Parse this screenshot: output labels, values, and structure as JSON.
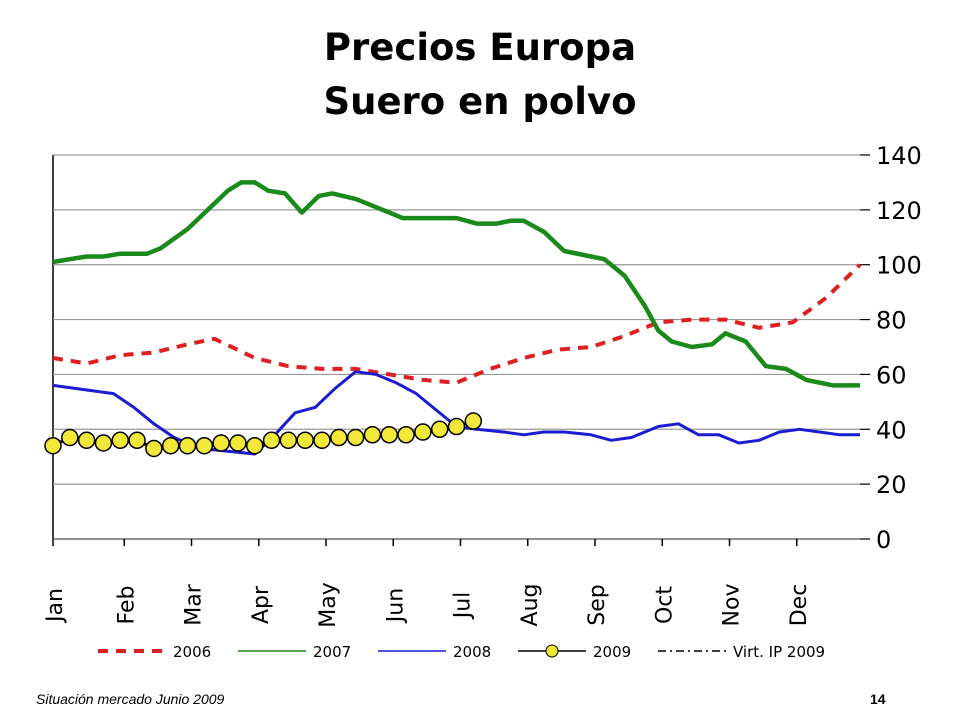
{
  "slide": {
    "title_line1": "Precios Europa",
    "title_line2": "Suero en polvo",
    "footer_text": "Situación mercado Junio 2009",
    "page_number": "14"
  },
  "chart_data": {
    "type": "line",
    "title": "",
    "xlabel": "",
    "ylabel": "",
    "ylim": [
      0,
      140
    ],
    "yticks": [
      0,
      20,
      40,
      60,
      80,
      100,
      120,
      140
    ],
    "x_range": [
      0,
      12
    ],
    "categories": [
      "Jan",
      "Feb",
      "Mar",
      "Apr",
      "May",
      "Jun",
      "Jul",
      "Aug",
      "Sep",
      "Oct",
      "Nov",
      "Dec"
    ],
    "grid": true,
    "legend_position": "bottom",
    "colors": {
      "2006": "#e02020",
      "2007": "#1a8a1a",
      "2008": "#1c1cd0",
      "2009": "#f2e83a",
      "Virt. IP 2009": "#000000"
    },
    "series": [
      {
        "name": "2006",
        "style": "dashed-red",
        "x": [
          0,
          0.5,
          1,
          1.5,
          2,
          2.4,
          3,
          3.5,
          4,
          4.5,
          5,
          5.5,
          6,
          6.5,
          7,
          7.5,
          8,
          8.5,
          9,
          9.5,
          10,
          10.5,
          11,
          11.5,
          12
        ],
        "y": [
          66,
          64,
          67,
          68,
          71,
          73,
          66,
          63,
          62,
          62,
          60,
          58,
          57,
          62,
          66,
          69,
          70,
          74,
          79,
          80,
          80,
          77,
          79,
          88,
          100
        ]
      },
      {
        "name": "2007",
        "style": "solid-green",
        "x": [
          0,
          0.25,
          0.5,
          0.75,
          1,
          1.4,
          1.6,
          2,
          2.3,
          2.6,
          2.8,
          3,
          3.2,
          3.45,
          3.7,
          3.95,
          4.15,
          4.5,
          4.8,
          5,
          5.2,
          5.5,
          6,
          6.3,
          6.6,
          6.8,
          7,
          7.3,
          7.6,
          8,
          8.2,
          8.5,
          8.8,
          9,
          9.2,
          9.5,
          9.8,
          10,
          10.3,
          10.6,
          10.9,
          11.2,
          11.6,
          12
        ],
        "y": [
          101,
          102,
          103,
          103,
          104,
          104,
          106,
          113,
          120,
          127,
          130,
          130,
          127,
          126,
          119,
          125,
          126,
          124,
          121,
          119,
          117,
          117,
          117,
          115,
          115,
          116,
          116,
          112,
          105,
          103,
          102,
          96,
          85,
          76,
          72,
          70,
          71,
          75,
          72,
          63,
          62,
          58,
          56,
          56
        ]
      },
      {
        "name": "2008",
        "style": "solid-blue",
        "x": [
          0,
          0.3,
          0.6,
          0.9,
          1.2,
          1.5,
          1.8,
          2.2,
          2.6,
          3,
          3.3,
          3.6,
          3.9,
          4.2,
          4.5,
          4.8,
          5.1,
          5.4,
          5.7,
          6,
          6.3,
          6.7,
          7,
          7.3,
          7.6,
          8,
          8.3,
          8.6,
          9,
          9.3,
          9.6,
          9.9,
          10.2,
          10.5,
          10.8,
          11.1,
          11.4,
          11.7,
          12
        ],
        "y": [
          56,
          55,
          54,
          53,
          48,
          42,
          37,
          33,
          32,
          31,
          38,
          46,
          48,
          55,
          61,
          60,
          57,
          53,
          47,
          41,
          40,
          39,
          38,
          39,
          39,
          38,
          36,
          37,
          41,
          42,
          38,
          38,
          35,
          36,
          39,
          40,
          39,
          38,
          38
        ]
      },
      {
        "name": "2009",
        "style": "yellow-circle-markers",
        "x": [
          0,
          0.25,
          0.5,
          0.75,
          1,
          1.25,
          1.5,
          1.75,
          2,
          2.25,
          2.5,
          2.75,
          3,
          3.25,
          3.5,
          3.75,
          4,
          4.25,
          4.5,
          4.75,
          5,
          5.25,
          5.5,
          5.75,
          6,
          6.25
        ],
        "y": [
          34,
          37,
          36,
          35,
          36,
          36,
          33,
          34,
          34,
          34,
          35,
          35,
          34,
          36,
          36,
          36,
          36,
          37,
          37,
          38,
          38,
          38,
          39,
          40,
          41,
          43
        ]
      },
      {
        "name": "Virt. IP 2009",
        "style": "dash-dot-black",
        "x": [],
        "y": []
      }
    ]
  }
}
